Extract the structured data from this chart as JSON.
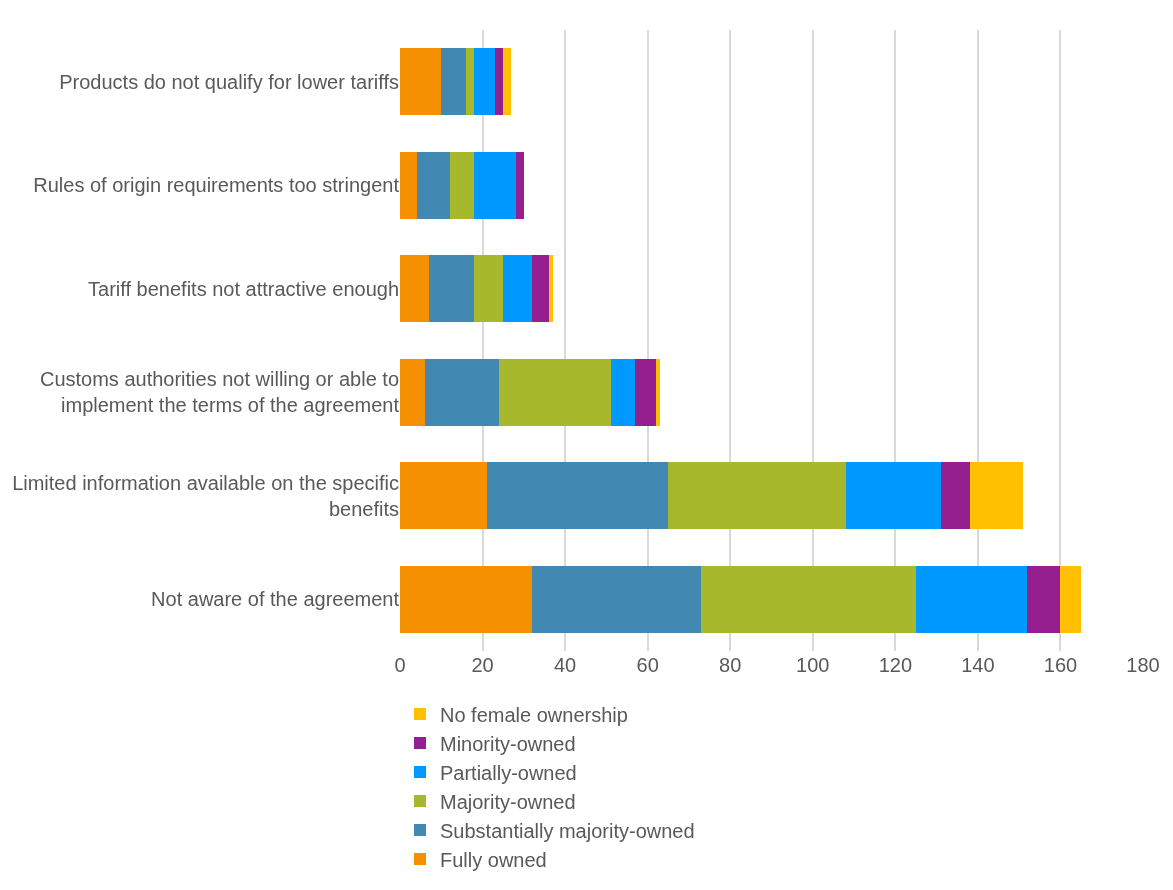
{
  "chart_data": {
    "type": "bar",
    "orientation": "horizontal",
    "stacked": true,
    "categories": [
      "Products do not qualify for lower tariffs",
      "Rules of origin requirements too stringent",
      "Tariff benefits not attractive enough",
      "Customs authorities not willing or able to implement the terms of the agreement",
      "Limited information available on the specific benefits",
      "Not aware of the agreement"
    ],
    "series": [
      {
        "name": "Fully owned",
        "color": "#f59100",
        "values": [
          10,
          4,
          7,
          6,
          21,
          32
        ]
      },
      {
        "name": "Substantially majority-owned",
        "color": "#4189b3",
        "values": [
          6,
          8,
          11,
          18,
          44,
          41
        ]
      },
      {
        "name": "Majority-owned",
        "color": "#a7b82c",
        "values": [
          2,
          6,
          7,
          27,
          43,
          52
        ]
      },
      {
        "name": "Partially-owned",
        "color": "#0099ff",
        "values": [
          5,
          10,
          7,
          6,
          23,
          27
        ]
      },
      {
        "name": "Minority-owned",
        "color": "#961f8f",
        "values": [
          2,
          2,
          4,
          5,
          7,
          8
        ]
      },
      {
        "name": "No female ownership",
        "color": "#ffc000",
        "values": [
          2,
          0,
          1,
          1,
          13,
          5
        ]
      }
    ],
    "xlim": [
      0,
      180
    ],
    "xticks": [
      0,
      20,
      40,
      60,
      80,
      100,
      120,
      140,
      160,
      180
    ],
    "grid": "x",
    "legend": "bottom"
  }
}
